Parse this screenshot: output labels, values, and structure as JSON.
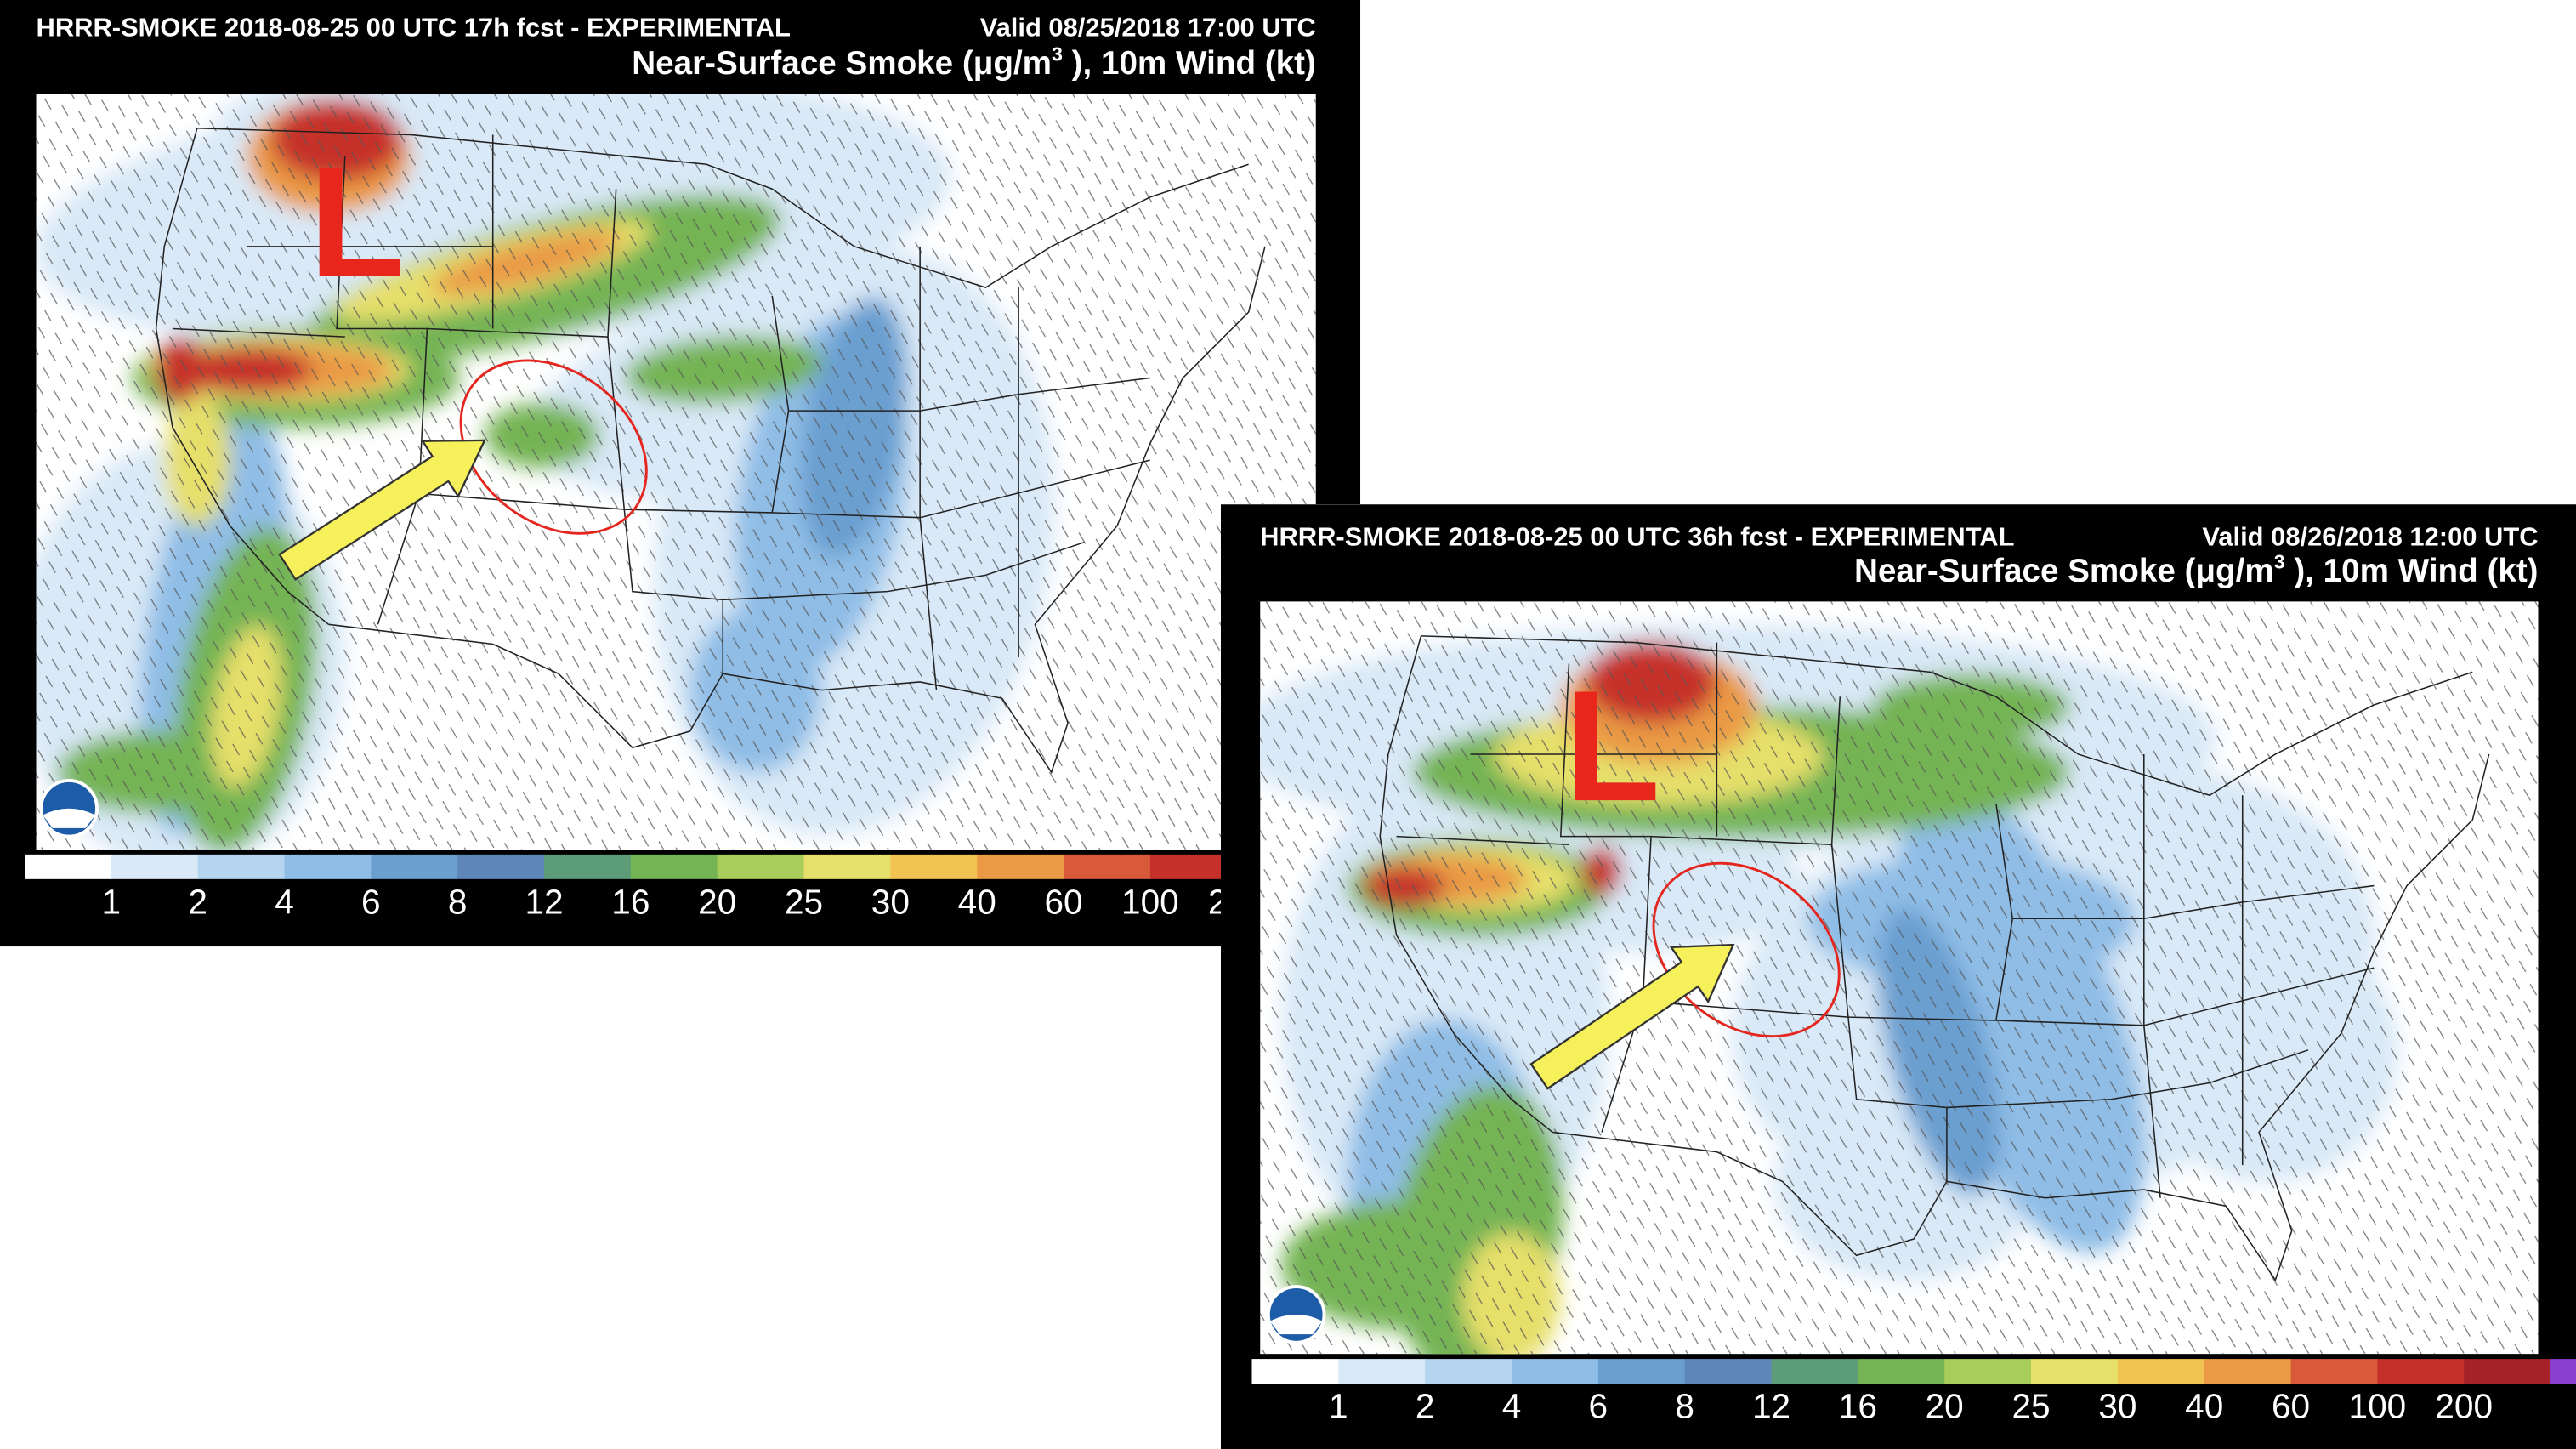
{
  "panels": [
    {
      "title": "HRRR-SMOKE 2018-08-25 00 UTC 17h fcst - EXPERIMENTAL",
      "valid": "Valid 08/25/2018 17:00 UTC",
      "subtitle": [
        "Near-Surface Smoke (μg/m",
        "3",
        " ), 10m Wind (kt)"
      ],
      "marker": "L"
    },
    {
      "title": "HRRR-SMOKE 2018-08-25 00 UTC 36h fcst - EXPERIMENTAL",
      "valid": "Valid 08/26/2018 12:00 UTC",
      "subtitle": [
        "Near-Surface Smoke (μg/m",
        "3",
        " ), 10m Wind (kt)"
      ],
      "marker": "L"
    }
  ],
  "colorbar": {
    "labels": [
      1,
      2,
      4,
      6,
      8,
      12,
      16,
      20,
      25,
      30,
      40,
      60,
      100,
      200
    ],
    "colors": [
      "#ffffff",
      "#d9e9f7",
      "#b4d4f0",
      "#8fbde6",
      "#6b9fd0",
      "#5e86b8",
      "#5c9c78",
      "#74b454",
      "#a9cd5b",
      "#e6df6b",
      "#f1c353",
      "#ea9a44",
      "#d95a3a",
      "#c6302b",
      "#a42228",
      "#8a3fd0"
    ]
  }
}
